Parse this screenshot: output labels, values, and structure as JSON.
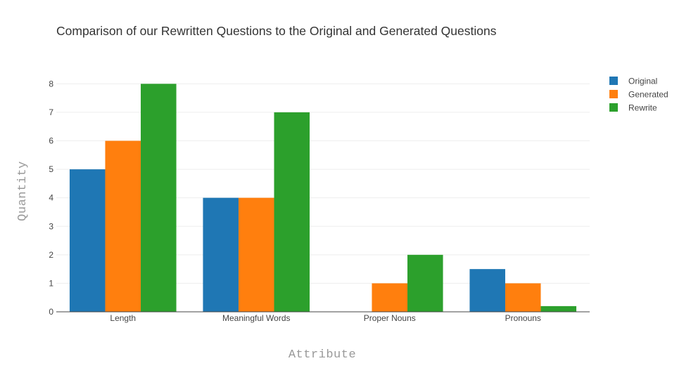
{
  "chart_data": {
    "type": "bar",
    "title": "Comparison of our Rewritten Questions to the Original and Generated Questions",
    "xlabel": "Attribute",
    "ylabel": "Quantity",
    "categories": [
      "Length",
      "Meaningful Words",
      "Proper Nouns",
      "Pronouns"
    ],
    "series": [
      {
        "name": "Original",
        "color": "#1f77b4",
        "values": [
          5,
          4,
          0,
          1.5
        ]
      },
      {
        "name": "Generated",
        "color": "#ff7f0e",
        "values": [
          6,
          4,
          1,
          1
        ]
      },
      {
        "name": "Rewrite",
        "color": "#2ca02c",
        "values": [
          8,
          7,
          2,
          0.2
        ]
      }
    ],
    "ylim": [
      0,
      8.6
    ],
    "yticks": [
      0,
      1,
      2,
      3,
      4,
      5,
      6,
      7,
      8
    ],
    "grid": true,
    "legend_position": "top-right"
  }
}
